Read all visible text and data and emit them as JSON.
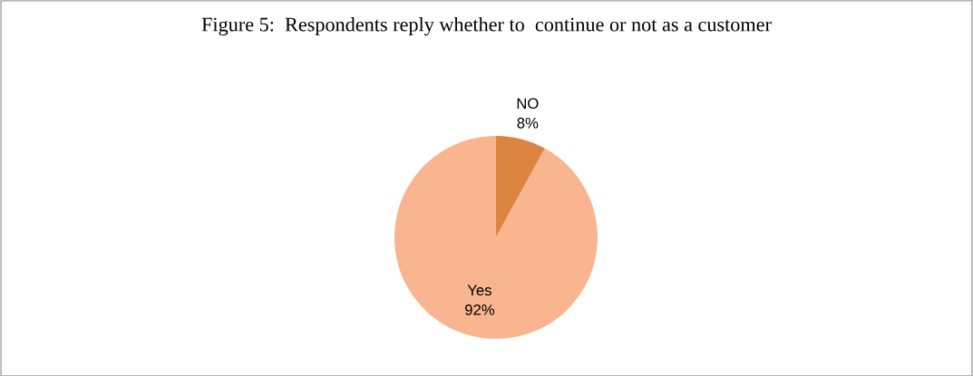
{
  "chart_data": {
    "type": "pie",
    "title": "Figure 5:  Respondents reply whether to  continue or not as a customer",
    "categories": [
      "NO",
      "Yes"
    ],
    "values": [
      8,
      92
    ],
    "colors": [
      "#dc8540",
      "#f8b58f"
    ],
    "value_labels": [
      "8%",
      "92%"
    ],
    "legend": false
  }
}
